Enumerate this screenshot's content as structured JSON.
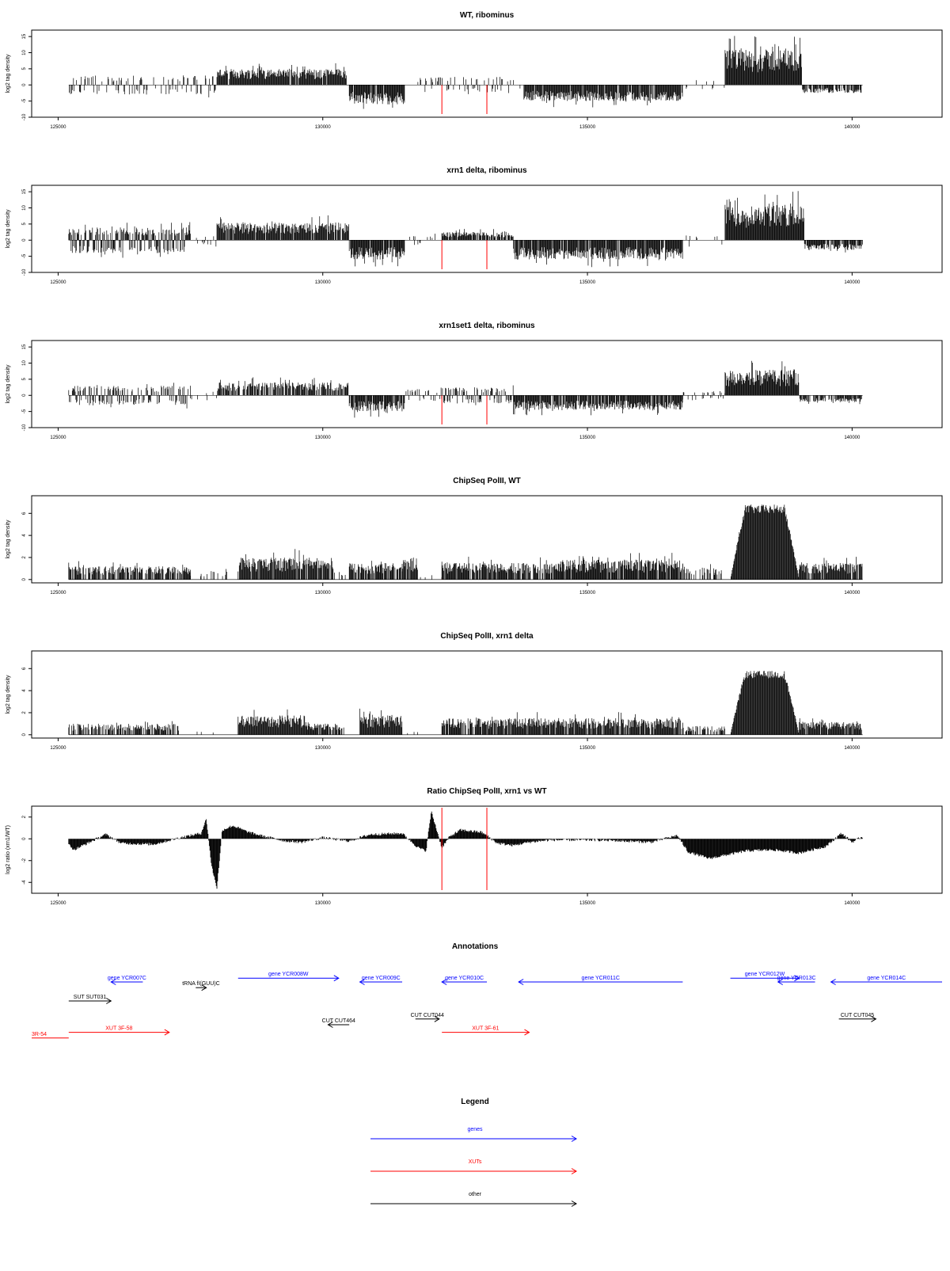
{
  "colors": {
    "genes": "#0000ff",
    "XUTs": "#ff0000",
    "other": "#000000",
    "marker": "#ff0000",
    "bars": "#000000"
  },
  "chart_data": [
    {
      "type": "bar",
      "title": "WT, ribominus",
      "ylabel": "log2 tag density",
      "xlim": [
        124500,
        141700
      ],
      "ylim": [
        -10,
        17
      ],
      "xticks": [
        125000,
        130000,
        135000,
        140000
      ],
      "xtick_labels": [
        "125000",
        "130000",
        "135000",
        "140000"
      ],
      "yticks": [
        -10,
        -5,
        0,
        5,
        10,
        15
      ],
      "ytick_labels": [
        "-10",
        "-5",
        "0",
        "5",
        "10",
        "15"
      ],
      "markers": [
        132250,
        133100
      ],
      "regions": [
        {
          "x0": 125200,
          "x1": 128000,
          "sign": 0,
          "amp": 3,
          "density": 0.4
        },
        {
          "x0": 128000,
          "x1": 130450,
          "sign": 1,
          "amp": 5,
          "density": 0.95
        },
        {
          "x0": 130500,
          "x1": 131550,
          "sign": -1,
          "amp": 6,
          "density": 0.95
        },
        {
          "x0": 131550,
          "x1": 133800,
          "sign": 0,
          "amp": 2.5,
          "density": 0.25
        },
        {
          "x0": 133800,
          "x1": 136800,
          "sign": -1,
          "amp": 5,
          "density": 0.95
        },
        {
          "x0": 136800,
          "x1": 137600,
          "sign": 0,
          "amp": 1.5,
          "density": 0.15
        },
        {
          "x0": 137600,
          "x1": 139050,
          "sign": 1,
          "amp": 11,
          "density": 1
        },
        {
          "x0": 139050,
          "x1": 140200,
          "sign": -1,
          "amp": 2.5,
          "density": 0.7
        }
      ]
    },
    {
      "type": "bar",
      "title": "xrn1 delta, ribominus",
      "ylabel": "log2 tag density",
      "xlim": [
        124500,
        141700
      ],
      "ylim": [
        -10,
        17
      ],
      "xticks": [
        125000,
        130000,
        135000,
        140000
      ],
      "xtick_labels": [
        "125000",
        "130000",
        "135000",
        "140000"
      ],
      "yticks": [
        -10,
        -5,
        0,
        5,
        10,
        15
      ],
      "ytick_labels": [
        "-10",
        "-5",
        "0",
        "5",
        "10",
        "15"
      ],
      "markers": [
        132250,
        133100
      ],
      "regions": [
        {
          "x0": 125200,
          "x1": 127500,
          "sign": 0,
          "amp": 4,
          "density": 0.95
        },
        {
          "x0": 127500,
          "x1": 128000,
          "sign": 0,
          "amp": 1.5,
          "density": 0.2
        },
        {
          "x0": 128000,
          "x1": 130500,
          "sign": 1,
          "amp": 5.5,
          "density": 0.95
        },
        {
          "x0": 130500,
          "x1": 131550,
          "sign": -1,
          "amp": 6,
          "density": 0.95
        },
        {
          "x0": 131550,
          "x1": 132250,
          "sign": 0,
          "amp": 1.5,
          "density": 0.2
        },
        {
          "x0": 132250,
          "x1": 133600,
          "sign": 1,
          "amp": 2.5,
          "density": 0.9
        },
        {
          "x0": 133600,
          "x1": 136800,
          "sign": -1,
          "amp": 6,
          "density": 0.95
        },
        {
          "x0": 136800,
          "x1": 137600,
          "sign": 0,
          "amp": 1.5,
          "density": 0.2
        },
        {
          "x0": 137600,
          "x1": 139100,
          "sign": 1,
          "amp": 11,
          "density": 1
        },
        {
          "x0": 139100,
          "x1": 140200,
          "sign": -1,
          "amp": 3,
          "density": 0.9
        }
      ]
    },
    {
      "type": "bar",
      "title": "xrn1set1 delta, ribominus",
      "ylabel": "log2 tag density",
      "xlim": [
        124500,
        141700
      ],
      "ylim": [
        -10,
        17
      ],
      "xticks": [
        125000,
        130000,
        135000,
        140000
      ],
      "xtick_labels": [
        "125000",
        "130000",
        "135000",
        "140000"
      ],
      "yticks": [
        -10,
        -5,
        0,
        5,
        10,
        15
      ],
      "ytick_labels": [
        "-10",
        "-5",
        "0",
        "5",
        "10",
        "15"
      ],
      "markers": [
        132250,
        133100
      ],
      "regions": [
        {
          "x0": 125200,
          "x1": 127500,
          "sign": 0,
          "amp": 3,
          "density": 0.7
        },
        {
          "x0": 127500,
          "x1": 128000,
          "sign": 0,
          "amp": 1.5,
          "density": 0.2
        },
        {
          "x0": 128000,
          "x1": 130500,
          "sign": 1,
          "amp": 4,
          "density": 0.8
        },
        {
          "x0": 130500,
          "x1": 131550,
          "sign": -1,
          "amp": 5,
          "density": 0.9
        },
        {
          "x0": 131550,
          "x1": 132250,
          "sign": 0,
          "amp": 2,
          "density": 0.4
        },
        {
          "x0": 132250,
          "x1": 133600,
          "sign": 0,
          "amp": 2.5,
          "density": 0.6
        },
        {
          "x0": 133600,
          "x1": 136800,
          "sign": -1,
          "amp": 4.5,
          "density": 0.9
        },
        {
          "x0": 136800,
          "x1": 137600,
          "sign": 0,
          "amp": 1.5,
          "density": 0.3
        },
        {
          "x0": 137600,
          "x1": 139000,
          "sign": 1,
          "amp": 8,
          "density": 1
        },
        {
          "x0": 139000,
          "x1": 140200,
          "sign": -1,
          "amp": 2,
          "density": 0.7
        }
      ]
    },
    {
      "type": "bar",
      "title": "ChipSeq PolII, WT",
      "ylabel": "log2 tag density",
      "xlim": [
        124500,
        141700
      ],
      "ylim": [
        -0.3,
        7.6
      ],
      "xticks": [
        125000,
        130000,
        135000,
        140000
      ],
      "xtick_labels": [
        "125000",
        "130000",
        "135000",
        "140000"
      ],
      "yticks": [
        0,
        2,
        4,
        6
      ],
      "ytick_labels": [
        "0",
        "2",
        "4",
        "6"
      ],
      "markers": [
        132250,
        133100
      ],
      "regions": [
        {
          "x0": 125200,
          "x1": 127500,
          "sign": 1,
          "amp": 1.2,
          "density": 0.7
        },
        {
          "x0": 127500,
          "x1": 128400,
          "sign": 1,
          "amp": 0.8,
          "density": 0.15
        },
        {
          "x0": 128400,
          "x1": 130200,
          "sign": 1,
          "amp": 2,
          "density": 0.9
        },
        {
          "x0": 130200,
          "x1": 130500,
          "sign": 1,
          "amp": 0.8,
          "density": 0.3
        },
        {
          "x0": 130500,
          "x1": 131500,
          "sign": 1,
          "amp": 1.5,
          "density": 0.8
        },
        {
          "x0": 131500,
          "x1": 131800,
          "sign": 1,
          "amp": 2,
          "density": 0.9
        },
        {
          "x0": 131800,
          "x1": 132250,
          "sign": 1,
          "amp": 0.5,
          "density": 0.05
        },
        {
          "x0": 132250,
          "x1": 134500,
          "sign": 1,
          "amp": 1.5,
          "density": 0.8
        },
        {
          "x0": 134500,
          "x1": 136800,
          "sign": 1,
          "amp": 1.8,
          "density": 0.9
        },
        {
          "x0": 136800,
          "x1": 137600,
          "sign": 1,
          "amp": 1,
          "density": 0.5
        },
        {
          "x0": 137700,
          "x1": 139000,
          "sign": 1,
          "amp": 6.8,
          "density": 1,
          "shape": "dome"
        },
        {
          "x0": 139000,
          "x1": 140200,
          "sign": 1,
          "amp": 1.5,
          "density": 0.9
        }
      ]
    },
    {
      "type": "bar",
      "title": "ChipSeq PolII, xrn1 delta",
      "ylabel": "log2 tag density",
      "xlim": [
        124500,
        141700
      ],
      "ylim": [
        -0.3,
        7.6
      ],
      "xticks": [
        125000,
        130000,
        135000,
        140000
      ],
      "xtick_labels": [
        "125000",
        "130000",
        "135000",
        "140000"
      ],
      "yticks": [
        0,
        2,
        4,
        6
      ],
      "ytick_labels": [
        "0",
        "2",
        "4",
        "6"
      ],
      "markers": [
        132250,
        133100
      ],
      "regions": [
        {
          "x0": 125200,
          "x1": 127300,
          "sign": 1,
          "amp": 1,
          "density": 0.6
        },
        {
          "x0": 127300,
          "x1": 128400,
          "sign": 1,
          "amp": 0.3,
          "density": 0.05
        },
        {
          "x0": 128400,
          "x1": 129700,
          "sign": 1,
          "amp": 1.8,
          "density": 1
        },
        {
          "x0": 129700,
          "x1": 130400,
          "sign": 1,
          "amp": 1,
          "density": 0.8
        },
        {
          "x0": 130700,
          "x1": 131500,
          "sign": 1,
          "amp": 1.8,
          "density": 1
        },
        {
          "x0": 131500,
          "x1": 132250,
          "sign": 1,
          "amp": 0.3,
          "density": 0.05
        },
        {
          "x0": 132250,
          "x1": 133100,
          "sign": 1,
          "amp": 1.5,
          "density": 0.8
        },
        {
          "x0": 133100,
          "x1": 136800,
          "sign": 1,
          "amp": 1.5,
          "density": 0.9
        },
        {
          "x0": 136800,
          "x1": 137600,
          "sign": 1,
          "amp": 0.8,
          "density": 0.5
        },
        {
          "x0": 137700,
          "x1": 139000,
          "sign": 1,
          "amp": 5.8,
          "density": 1,
          "shape": "dome"
        },
        {
          "x0": 139000,
          "x1": 140200,
          "sign": 1,
          "amp": 1.2,
          "density": 0.9
        }
      ]
    },
    {
      "type": "area",
      "title": "Ratio ChipSeq PolII, xrn1 vs WT",
      "ylabel": "log2 ratio (xrn1/WT)",
      "xlim": [
        124500,
        141700
      ],
      "ylim": [
        -5,
        3
      ],
      "xticks": [
        125000,
        130000,
        135000,
        140000
      ],
      "xtick_labels": [
        "125000",
        "130000",
        "135000",
        "140000"
      ],
      "yticks": [
        -4,
        -2,
        0,
        2
      ],
      "ytick_labels": [
        "-4",
        "-2",
        "0",
        "2"
      ],
      "markers": [
        132250,
        133100
      ],
      "x": [
        125200,
        125300,
        125600,
        125900,
        126200,
        126800,
        127300,
        127700,
        127800,
        127900,
        128000,
        128100,
        128300,
        128600,
        128900,
        129300,
        129600,
        130000,
        130500,
        130900,
        131500,
        131800,
        131950,
        132050,
        132250,
        132400,
        132600,
        133000,
        133300,
        133600,
        133900,
        134300,
        134800,
        135200,
        135700,
        136200,
        136700,
        136900,
        137300,
        137700,
        138000,
        138500,
        139000,
        139500,
        139800,
        140000,
        140200
      ],
      "y": [
        -0.5,
        -1,
        -0.3,
        0.4,
        -0.4,
        -0.5,
        0.1,
        0.5,
        1.8,
        -2.5,
        -4.5,
        0.8,
        1.2,
        0.6,
        0.2,
        -0.2,
        -0.3,
        0.1,
        -0.2,
        0.4,
        0.5,
        -0.8,
        -1.1,
        2.5,
        -0.8,
        0.2,
        0.8,
        0.6,
        -0.4,
        -0.6,
        -0.3,
        -0.1,
        -0.1,
        -0.1,
        -0.2,
        -0.3,
        0.3,
        -1.2,
        -1.8,
        -1.4,
        -1.1,
        -1,
        -1.3,
        -0.7,
        0.5,
        -0.3,
        0.2
      ]
    },
    {
      "type": "other",
      "title": "Annotations",
      "xlim": [
        124500,
        141700
      ],
      "features": [
        {
          "label": "gene YCR007C",
          "x0": 126000,
          "x1": 126600,
          "dir": "left",
          "row": 0,
          "kind": "genes"
        },
        {
          "label": "tRNA fI(GUU)C",
          "x0": 127600,
          "x1": 127800,
          "dir": "right",
          "row": 0.6,
          "kind": "other"
        },
        {
          "label": "gene YCR008W",
          "x0": 128400,
          "x1": 130300,
          "dir": "right",
          "row": -0.4,
          "kind": "genes"
        },
        {
          "label": "gene YCR009C",
          "x0": 130700,
          "x1": 131500,
          "dir": "left",
          "row": 0,
          "kind": "genes"
        },
        {
          "label": "gene YCR010C",
          "x0": 132250,
          "x1": 133100,
          "dir": "left",
          "row": 0,
          "kind": "genes"
        },
        {
          "label": "gene YCR011C",
          "x0": 133700,
          "x1": 136800,
          "dir": "left",
          "row": 0,
          "kind": "genes"
        },
        {
          "label": "gene YCR012W",
          "x0": 137700,
          "x1": 139000,
          "dir": "right",
          "row": -0.4,
          "kind": "genes"
        },
        {
          "label": "gene YCR013C",
          "x0": 138600,
          "x1": 139300,
          "dir": "left",
          "row": 0,
          "kind": "genes"
        },
        {
          "label": "gene YCR014C",
          "x0": 139600,
          "x1": 141700,
          "dir": "left",
          "row": 0,
          "kind": "genes"
        },
        {
          "label": "SUT SUT031",
          "x0": 125200,
          "x1": 126000,
          "dir": "right",
          "row": 2,
          "kind": "other"
        },
        {
          "label": "CUT CUT464",
          "x0": 130100,
          "x1": 130500,
          "dir": "left",
          "row": 4.5,
          "kind": "other"
        },
        {
          "label": "CUT CUT044",
          "x0": 131750,
          "x1": 132200,
          "dir": "right",
          "row": 3.9,
          "kind": "other"
        },
        {
          "label": "CUT CUT045",
          "x0": 139750,
          "x1": 140450,
          "dir": "right",
          "row": 3.9,
          "kind": "other"
        },
        {
          "label": "XUT 3F-58",
          "x0": 125200,
          "x1": 127100,
          "dir": "right",
          "row": 5.3,
          "kind": "XUTs"
        },
        {
          "label": "XUT 3F-61",
          "x0": 132250,
          "x1": 133900,
          "dir": "right",
          "row": 5.3,
          "kind": "XUTs"
        },
        {
          "label": "3R-54",
          "x0": 124500,
          "x1": 125200,
          "dir": "none",
          "row": 5.9,
          "kind": "XUTs"
        }
      ]
    },
    {
      "type": "other",
      "title": "Legend",
      "entries": [
        {
          "label": "genes",
          "kind": "genes"
        },
        {
          "label": "XUTs",
          "kind": "XUTs"
        },
        {
          "label": "other",
          "kind": "other"
        }
      ]
    }
  ]
}
